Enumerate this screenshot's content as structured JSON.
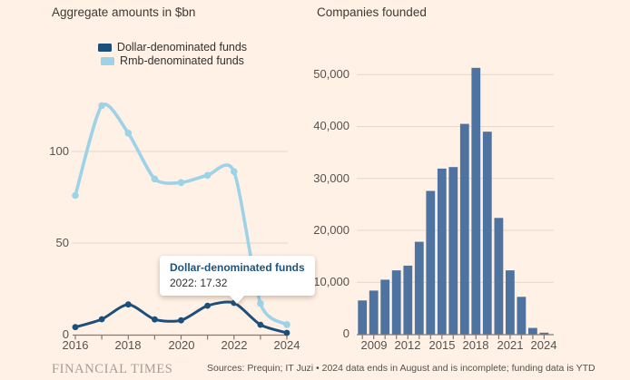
{
  "colors": {
    "background": "#FFF1E5",
    "dollar_line": "#1D4F7C",
    "rmb_line": "#9DD2E7",
    "bar": "#4E73A0",
    "gridline": "#E6D8C8",
    "axis": "#837C74",
    "tooltip_title": "#1D5380",
    "text_dark": "#33302E",
    "tick_label": "#57524D",
    "ft_brand": "#A79C92"
  },
  "left_chart": {
    "title": "Aggregate amounts in $bn",
    "legend": [
      {
        "label": "Dollar-denominated funds"
      },
      {
        "label": "Rmb-denominated funds"
      }
    ],
    "y_tick_labels": [
      "100",
      "50",
      "0"
    ],
    "x_tick_labels": [
      "2016",
      "2018",
      "2020",
      "2022",
      "2024"
    ],
    "tooltip": {
      "title": "Dollar-denominated funds",
      "value_line": "2022: 17.32"
    }
  },
  "right_chart": {
    "title": "Companies founded",
    "y_tick_labels": [
      "50,000",
      "40,000",
      "30,000",
      "20,000",
      "10,000",
      "0"
    ],
    "x_tick_labels": [
      "2009",
      "2012",
      "2015",
      "2018",
      "2021",
      "2024"
    ]
  },
  "footer": {
    "brand": "FINANCIAL TIMES",
    "sources": "Sources: Prequin; IT Juzi • 2024 data ends in August and is incomplete; funding data is YTD"
  },
  "chart_data": [
    {
      "type": "line",
      "title": "Aggregate amounts in $bn",
      "x": [
        2016,
        2017,
        2018,
        2019,
        2020,
        2021,
        2022,
        2023,
        2024
      ],
      "series": [
        {
          "name": "Dollar-denominated funds",
          "color": "#1D4F7C",
          "values": [
            4.1,
            8.4,
            16.5,
            8.3,
            7.8,
            15.8,
            17.32,
            5.4,
            1.0
          ]
        },
        {
          "name": "Rmb-denominated funds",
          "color": "#9DD2E7",
          "values": [
            76,
            125,
            110,
            85,
            83,
            87,
            89,
            17,
            5.5
          ]
        }
      ],
      "ylim": [
        0,
        135
      ],
      "yticks": [
        0,
        50,
        100
      ],
      "xticks": [
        2016,
        2018,
        2020,
        2022,
        2024
      ],
      "grid": "horizontal",
      "legend_position": "top",
      "tooltip": {
        "series": "Dollar-denominated funds",
        "x": 2022,
        "value": 17.32
      }
    },
    {
      "type": "bar",
      "title": "Companies founded",
      "categories": [
        2008,
        2009,
        2010,
        2011,
        2012,
        2013,
        2014,
        2015,
        2016,
        2017,
        2018,
        2019,
        2020,
        2021,
        2022,
        2023,
        2024
      ],
      "values": [
        6500,
        8400,
        10500,
        12300,
        13200,
        17800,
        27600,
        31900,
        32200,
        40500,
        51300,
        39000,
        22400,
        12300,
        7200,
        1200,
        300
      ],
      "bar_color": "#4E73A0",
      "ylim": [
        0,
        55000
      ],
      "yticks": [
        0,
        10000,
        20000,
        30000,
        40000,
        50000
      ],
      "xticks": [
        2009,
        2012,
        2015,
        2018,
        2021,
        2024
      ],
      "grid": "horizontal"
    }
  ]
}
